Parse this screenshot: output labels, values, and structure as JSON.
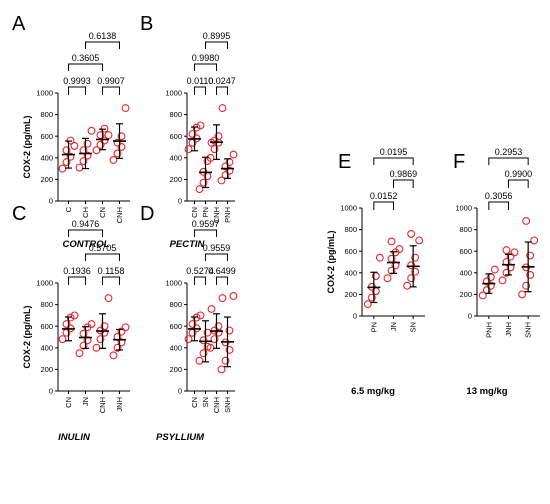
{
  "chart_data": [
    {
      "id": "A",
      "type": "scatter",
      "letter": "A",
      "group_label": "CONTROL",
      "ylabel": "COX-2 (pg/mL)",
      "ylim": [
        0,
        1000
      ],
      "yticks": [
        "0",
        "200",
        "400",
        "600",
        "800",
        "1000"
      ],
      "categories": [
        "C",
        "CH",
        "CN",
        "CNH"
      ],
      "mean": [
        430,
        440,
        570,
        555
      ],
      "sd": [
        125,
        140,
        95,
        160
      ],
      "points": [
        [
          300,
          360,
          410,
          470,
          560,
          510
        ],
        [
          310,
          370,
          420,
          470,
          530,
          650
        ],
        [
          470,
          520,
          560,
          610,
          670,
          610
        ],
        [
          380,
          440,
          500,
          540,
          600,
          860
        ]
      ],
      "comparisons": [
        {
          "from": 0,
          "to": 1,
          "p": "0.9993"
        },
        {
          "from": 2,
          "to": 3,
          "p": "0.9907"
        },
        {
          "from": 0,
          "to": 2,
          "p": "0.3605"
        },
        {
          "from": 1,
          "to": 3,
          "p": "0.6138"
        }
      ]
    },
    {
      "id": "B",
      "type": "scatter",
      "letter": "B",
      "group_label": "PECTIN",
      "ylabel": "",
      "ylim": [
        0,
        1000
      ],
      "yticks": [
        "0",
        "200",
        "400",
        "600",
        "800",
        "1000"
      ],
      "categories": [
        "CN",
        "PN",
        "CNH",
        "PNH"
      ],
      "mean": [
        575,
        265,
        545,
        300
      ],
      "sd": [
        110,
        140,
        160,
        90
      ],
      "points": [
        [
          480,
          540,
          580,
          620,
          680,
          700
        ],
        [
          110,
          170,
          230,
          270,
          370,
          540
        ],
        [
          400,
          480,
          540,
          560,
          600,
          860
        ],
        [
          190,
          240,
          280,
          320,
          360,
          430
        ]
      ],
      "comparisons": [
        {
          "from": 0,
          "to": 1,
          "p": "0.0110"
        },
        {
          "from": 2,
          "to": 3,
          "p": "0.0247"
        },
        {
          "from": 0,
          "to": 2,
          "p": "0.9980"
        },
        {
          "from": 1,
          "to": 3,
          "p": "0.8995"
        }
      ]
    },
    {
      "id": "C",
      "type": "scatter",
      "letter": "C",
      "group_label": "INULIN",
      "ylabel": "COX-2 (pg/mL)",
      "ylim": [
        0,
        1000
      ],
      "yticks": [
        "0",
        "200",
        "400",
        "600",
        "800",
        "1000"
      ],
      "categories": [
        "CN",
        "JN",
        "CNH",
        "JNH"
      ],
      "mean": [
        575,
        495,
        555,
        475
      ],
      "sd": [
        110,
        100,
        160,
        95
      ],
      "points": [
        [
          480,
          540,
          580,
          620,
          680,
          700
        ],
        [
          350,
          420,
          470,
          530,
          590,
          620
        ],
        [
          400,
          480,
          540,
          560,
          600,
          860
        ],
        [
          330,
          400,
          450,
          500,
          550,
          590
        ]
      ],
      "comparisons": [
        {
          "from": 0,
          "to": 1,
          "p": "0.1936"
        },
        {
          "from": 2,
          "to": 3,
          "p": "0.1158"
        },
        {
          "from": 1,
          "to": 3,
          "p": "0.5705"
        },
        {
          "from": 0,
          "to": 2,
          "p": "0.9476"
        }
      ]
    },
    {
      "id": "D",
      "type": "scatter",
      "letter": "D",
      "group_label": "PSYLLIUM",
      "ylabel": "",
      "ylim": [
        0,
        1000
      ],
      "yticks": [
        "0",
        "200",
        "400",
        "600",
        "800",
        "1000"
      ],
      "categories": [
        "CN",
        "SN",
        "CNH",
        "SNH"
      ],
      "mean": [
        575,
        460,
        555,
        455
      ],
      "sd": [
        110,
        190,
        160,
        230
      ],
      "points": [
        [
          480,
          540,
          580,
          620,
          680,
          700
        ],
        [
          280,
          350,
          410,
          470,
          540,
          760
        ],
        [
          400,
          480,
          540,
          560,
          600,
          860
        ],
        [
          200,
          280,
          380,
          450,
          560,
          880
        ]
      ],
      "comparisons": [
        {
          "from": 0,
          "to": 1,
          "p": "0.5274"
        },
        {
          "from": 2,
          "to": 3,
          "p": "0.6499"
        },
        {
          "from": 1,
          "to": 3,
          "p": "0.9559"
        },
        {
          "from": 0,
          "to": 2,
          "p": "0.9597"
        }
      ]
    },
    {
      "id": "E",
      "type": "scatter",
      "letter": "E",
      "group_label": "6.5 mg/kg",
      "ylabel": "COX-2 (pg/mL)",
      "ylim": [
        0,
        1000
      ],
      "yticks": [
        "0",
        "200",
        "400",
        "600",
        "800",
        "1000"
      ],
      "categories": [
        "PN",
        "JN",
        "SN"
      ],
      "mean": [
        265,
        495,
        460
      ],
      "sd": [
        140,
        100,
        190
      ],
      "points": [
        [
          110,
          170,
          230,
          270,
          370,
          540
        ],
        [
          350,
          420,
          470,
          530,
          590,
          620,
          690
        ],
        [
          280,
          350,
          410,
          470,
          540,
          700,
          760
        ]
      ],
      "comparisons": [
        {
          "from": 0,
          "to": 1,
          "p": "0.0152"
        },
        {
          "from": 1,
          "to": 2,
          "p": "0.9869"
        },
        {
          "from": 0,
          "to": 2,
          "p": "0.0195"
        }
      ]
    },
    {
      "id": "F",
      "type": "scatter",
      "letter": "F",
      "group_label": "13 mg/kg",
      "ylabel": "",
      "ylim": [
        0,
        1000
      ],
      "yticks": [
        "0",
        "200",
        "400",
        "600",
        "800",
        "1000"
      ],
      "categories": [
        "PNH",
        "JNH",
        "SNH"
      ],
      "mean": [
        300,
        475,
        455
      ],
      "sd": [
        90,
        95,
        230
      ],
      "points": [
        [
          190,
          240,
          280,
          320,
          360,
          430
        ],
        [
          330,
          400,
          450,
          500,
          550,
          590,
          610
        ],
        [
          200,
          280,
          380,
          450,
          560,
          700,
          880
        ]
      ],
      "comparisons": [
        {
          "from": 0,
          "to": 1,
          "p": "0.3056"
        },
        {
          "from": 1,
          "to": 2,
          "p": "0.9900"
        },
        {
          "from": 0,
          "to": 2,
          "p": "0.2953"
        }
      ]
    }
  ],
  "colors": {
    "point": "#e8262b",
    "axis": "#000000"
  }
}
